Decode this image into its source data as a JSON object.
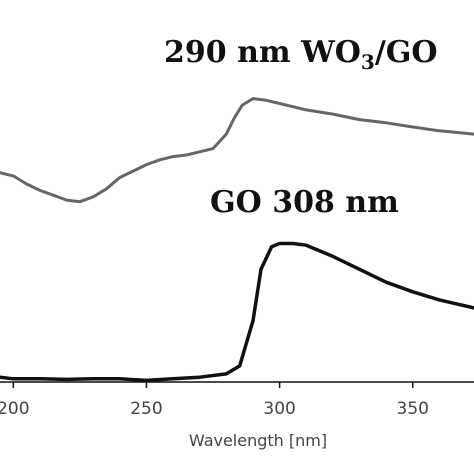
{
  "chart_data": {
    "type": "line",
    "xlabel": "Wavelength [nm]",
    "ylabel": "",
    "xlim": [
      195,
      373
    ],
    "ylim": [
      0,
      1
    ],
    "x_ticks": [
      "200",
      "250",
      "300",
      "350"
    ],
    "x_tick_values": [
      200,
      250,
      300,
      350
    ],
    "grid": false,
    "legend": "none",
    "annotations": [
      {
        "text_main": "290 nm WO",
        "sub": "3",
        "text_after": "/GO"
      },
      {
        "text": "GO 308 nm"
      }
    ],
    "series": [
      {
        "color": "#666666",
        "x": [
          195,
          200,
          205,
          210,
          215,
          220,
          225,
          230,
          235,
          240,
          245,
          250,
          255,
          260,
          265,
          270,
          275,
          280,
          283,
          286,
          290,
          295,
          300,
          305,
          310,
          320,
          330,
          340,
          350,
          360,
          373
        ],
        "y": [
          0.65,
          0.64,
          0.615,
          0.595,
          0.58,
          0.565,
          0.56,
          0.575,
          0.6,
          0.635,
          0.655,
          0.675,
          0.69,
          0.7,
          0.705,
          0.715,
          0.725,
          0.77,
          0.82,
          0.86,
          0.88,
          0.875,
          0.865,
          0.855,
          0.845,
          0.832,
          0.815,
          0.805,
          0.792,
          0.78,
          0.77
        ]
      },
      {
        "color": "#111111",
        "x": [
          195,
          200,
          210,
          220,
          230,
          240,
          250,
          260,
          270,
          280,
          285,
          290,
          293,
          297,
          300,
          305,
          310,
          320,
          330,
          340,
          350,
          360,
          373
        ],
        "y": [
          0.015,
          0.01,
          0.01,
          0.008,
          0.01,
          0.01,
          0.005,
          0.01,
          0.015,
          0.025,
          0.05,
          0.19,
          0.35,
          0.42,
          0.43,
          0.43,
          0.425,
          0.39,
          0.35,
          0.31,
          0.28,
          0.255,
          0.23
        ]
      }
    ]
  }
}
